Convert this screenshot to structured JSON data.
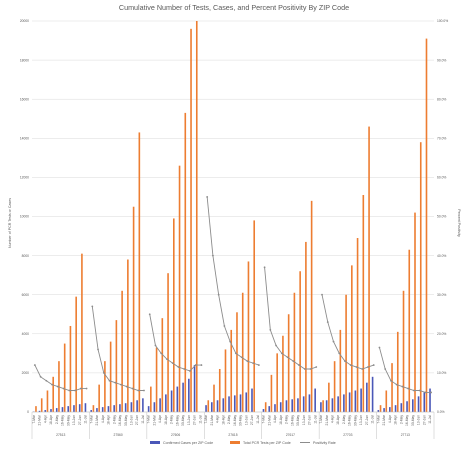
{
  "chart_data": {
    "type": "bar",
    "title": "Cumulative Number of Tests, Cases, and Percent Positivity By ZIP Code",
    "ylabel_left": "Number of PCR Tests or Cases",
    "ylabel_right": "Percent Positivity",
    "ylim_left": [
      0,
      20000
    ],
    "ylim_right": [
      0,
      1.0
    ],
    "yticks_left": [
      "0",
      "2000",
      "4000",
      "6000",
      "8000",
      "10000",
      "12000",
      "14000",
      "16000",
      "18000",
      "20000"
    ],
    "yticks_right": [
      "0.0%",
      "10.0%",
      "20.0%",
      "30.0%",
      "40.0%",
      "50.0%",
      "60.0%",
      "70.0%",
      "80.0%",
      "90.0%",
      "100.0%"
    ],
    "week_labels": [
      "7-Mar",
      "21-Mar",
      "4-Apr",
      "18-Apr",
      "2-May",
      "16-May",
      "30-May",
      "13-Jun",
      "27-Jun",
      "11-Jul"
    ],
    "groups": [
      {
        "zip": "27513",
        "n": 10,
        "cases": [
          20,
          60,
          100,
          150,
          200,
          250,
          300,
          350,
          400,
          450
        ],
        "tests": [
          300,
          700,
          1100,
          1800,
          2600,
          3500,
          4400,
          5900,
          8100,
          0
        ],
        "positivity": [
          0.12,
          0.09,
          0.08,
          0.07,
          0.065,
          0.06,
          0.055,
          0.055,
          0.06,
          0.06
        ]
      },
      {
        "zip": "27560",
        "n": 10,
        "cases": [
          100,
          200,
          250,
          300,
          350,
          400,
          450,
          500,
          600,
          700
        ],
        "tests": [
          350,
          1400,
          2600,
          3600,
          4700,
          6200,
          7800,
          10500,
          14300,
          0
        ],
        "positivity": [
          0.27,
          0.16,
          0.1,
          0.08,
          0.075,
          0.07,
          0.065,
          0.06,
          0.055,
          0.055
        ]
      },
      {
        "zip": "27606",
        "n": 10,
        "cases": [
          300,
          500,
          700,
          900,
          1100,
          1300,
          1500,
          1700,
          2400,
          0
        ],
        "tests": [
          1300,
          3300,
          4800,
          7100,
          9900,
          12600,
          15300,
          19600,
          20000,
          0
        ],
        "positivity": [
          0.25,
          0.17,
          0.15,
          0.135,
          0.125,
          0.115,
          0.11,
          0.105,
          0.12,
          0.12
        ]
      },
      {
        "zip": "27615",
        "n": 10,
        "cases": [
          350,
          500,
          600,
          700,
          800,
          850,
          900,
          1000,
          1200,
          0
        ],
        "tests": [
          600,
          1400,
          2200,
          3200,
          4200,
          5100,
          6100,
          7700,
          9800,
          0
        ],
        "positivity": [
          0.55,
          0.4,
          0.3,
          0.22,
          0.18,
          0.15,
          0.14,
          0.13,
          0.125,
          0.12
        ]
      },
      {
        "zip": "27617",
        "n": 10,
        "cases": [
          150,
          300,
          400,
          500,
          600,
          650,
          700,
          800,
          900,
          1200
        ],
        "tests": [
          500,
          1900,
          3000,
          3900,
          5000,
          6100,
          7200,
          8700,
          10800,
          0
        ],
        "positivity": [
          0.37,
          0.21,
          0.17,
          0.15,
          0.14,
          0.13,
          0.12,
          0.11,
          0.11,
          0.115
        ]
      },
      {
        "zip": "27703",
        "n": 10,
        "cases": [
          500,
          600,
          700,
          800,
          900,
          1000,
          1100,
          1200,
          1500,
          1800
        ],
        "tests": [
          600,
          1500,
          2600,
          4200,
          6000,
          7500,
          8900,
          11100,
          14600,
          0
        ],
        "positivity": [
          0.3,
          0.23,
          0.18,
          0.15,
          0.13,
          0.12,
          0.115,
          0.11,
          0.115,
          0.12
        ]
      },
      {
        "zip": "27713",
        "n": 10,
        "cases": [
          100,
          200,
          250,
          350,
          450,
          550,
          650,
          800,
          1000,
          1200
        ],
        "tests": [
          350,
          1100,
          2500,
          4100,
          6200,
          8300,
          10200,
          13800,
          19100,
          0
        ],
        "positivity": [
          0.165,
          0.11,
          0.08,
          0.07,
          0.065,
          0.06,
          0.055,
          0.055,
          0.05,
          0.05
        ]
      }
    ],
    "legend": [
      {
        "name": "Confirmed Cases per ZIP Code",
        "color": "#4a57b8"
      },
      {
        "name": "Total PCR Tests per ZIP Code",
        "color": "#ed7d31"
      },
      {
        "name": "Positivity Rate",
        "color": "#8c8c8c"
      }
    ],
    "colors": {
      "cases": "#4a57b8",
      "tests": "#ed7d31",
      "positivity": "#8c8c8c"
    },
    "grid": true,
    "legend_position": "bottom"
  }
}
